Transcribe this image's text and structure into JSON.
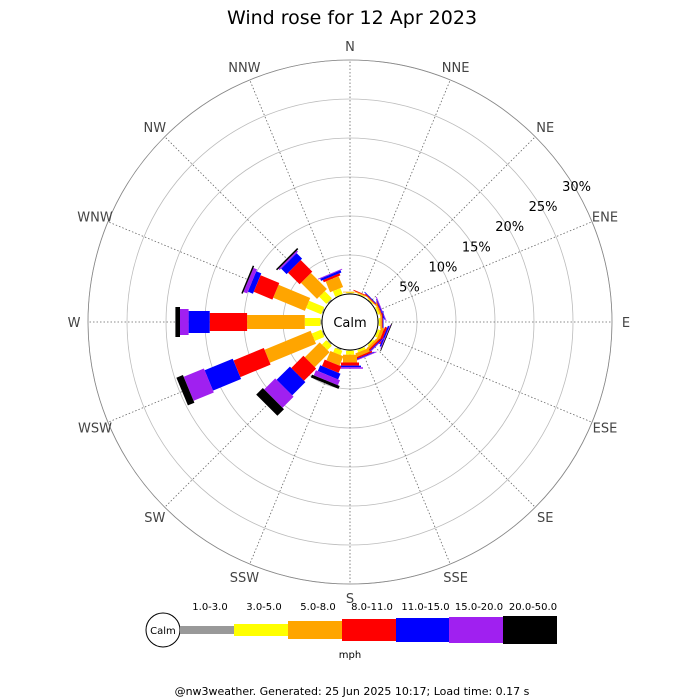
{
  "title": "Wind rose for 12 Apr 2023",
  "footer": "@nw3weather. Generated: 25 Jun 2025 10:17; Load time: 0.17 s",
  "chart_data": {
    "type": "windrose",
    "title": "Wind rose for 12 Apr 2023",
    "directions": [
      "N",
      "NNE",
      "NE",
      "ENE",
      "E",
      "ESE",
      "SE",
      "SSE",
      "S",
      "SSW",
      "SW",
      "WSW",
      "W",
      "WNW",
      "NW",
      "NNW"
    ],
    "radial_ticks": [
      "5%",
      "10%",
      "15%",
      "20%",
      "25%",
      "30%"
    ],
    "radial_values": [
      5,
      10,
      15,
      20,
      25,
      30
    ],
    "rmax_percent": 30,
    "calm_label": "Calm",
    "units": "mph",
    "speed_bins": [
      {
        "label": "1.0-3.0",
        "color": "#999999"
      },
      {
        "label": "3.0-5.0",
        "color": "#ffff00"
      },
      {
        "label": "5.0-8.0",
        "color": "#ffa500"
      },
      {
        "label": "8.0-11.0",
        "color": "#ff0000"
      },
      {
        "label": "11.0-15.0",
        "color": "#0000ff"
      },
      {
        "label": "15.0-20.0",
        "color": "#a020f0"
      },
      {
        "label": "20.0-50.0",
        "color": "#000000"
      }
    ],
    "frequencies_percent": {
      "N": [
        0.1,
        0.1,
        0.1,
        0.0,
        0.0,
        0.0,
        0.0
      ],
      "NNE": [
        0.1,
        0.1,
        0.1,
        0.1,
        0.0,
        0.0,
        0.0
      ],
      "NE": [
        0.1,
        0.1,
        0.1,
        0.1,
        0.1,
        0.0,
        0.0
      ],
      "ENE": [
        0.1,
        0.2,
        0.2,
        0.1,
        0.1,
        0.1,
        0.0
      ],
      "E": [
        0.1,
        0.2,
        0.2,
        0.1,
        0.1,
        0.0,
        0.0
      ],
      "ESE": [
        0.1,
        0.3,
        0.4,
        0.3,
        0.2,
        0.1,
        0.1
      ],
      "SE": [
        0.1,
        0.2,
        0.3,
        0.2,
        0.1,
        0.1,
        0.0
      ],
      "SSE": [
        0.1,
        0.3,
        0.5,
        0.2,
        0.1,
        0.1,
        0.0
      ],
      "S": [
        0.1,
        0.5,
        1.0,
        0.4,
        0.2,
        0.2,
        0.0
      ],
      "SSW": [
        0.2,
        0.6,
        1.3,
        0.9,
        0.8,
        0.7,
        0.4
      ],
      "SW": [
        0.2,
        0.8,
        2.7,
        2.2,
        2.4,
        2.0,
        1.2
      ],
      "WSW": [
        0.2,
        1.3,
        6.4,
        4.2,
        3.9,
        2.8,
        0.9
      ],
      "W": [
        0.2,
        2.0,
        7.4,
        4.8,
        2.7,
        1.1,
        0.6
      ],
      "WNW": [
        0.2,
        2.1,
        4.4,
        2.6,
        0.7,
        0.5,
        0.2
      ],
      "NW": [
        0.2,
        1.3,
        2.9,
        2.1,
        1.0,
        0.2,
        0.2
      ],
      "NNW": [
        0.1,
        0.8,
        1.5,
        0.3,
        0.3,
        0.1,
        0.0
      ]
    }
  }
}
